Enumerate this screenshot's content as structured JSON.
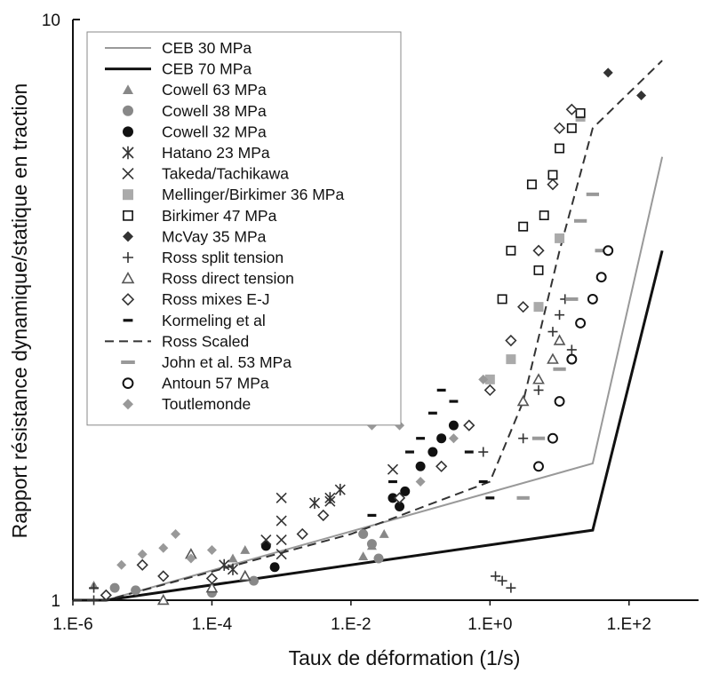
{
  "chart_data": {
    "type": "scatter",
    "title": "",
    "xlabel": "Taux de déformation (1/s)",
    "ylabel": "Rapport résistance dynamique/statique en traction",
    "x_scale": "log",
    "y_scale": "log",
    "xlim": [
      1e-06,
      1000
    ],
    "ylim": [
      1,
      10
    ],
    "x_ticks": [
      {
        "value": 1e-06,
        "label": "1.E-6"
      },
      {
        "value": 0.0001,
        "label": "1.E-4"
      },
      {
        "value": 0.01,
        "label": "1.E-2"
      },
      {
        "value": 1,
        "label": "1.E+0"
      },
      {
        "value": 100,
        "label": "1.E+2"
      }
    ],
    "y_ticks": [
      {
        "value": 1,
        "label": "1"
      },
      {
        "value": 10,
        "label": "10"
      }
    ],
    "grid": false,
    "legend_position": "top-left",
    "series": [
      {
        "name": "CEB 30 MPa",
        "kind": "line",
        "color": "#999999",
        "x": [
          1e-06,
          3e-06,
          30,
          300
        ],
        "y": [
          1.0,
          1.0,
          1.72,
          5.8
        ]
      },
      {
        "name": "CEB 70 MPa",
        "kind": "line",
        "color": "#111111",
        "x": [
          1e-06,
          3e-06,
          30,
          300
        ],
        "y": [
          1.0,
          1.0,
          1.32,
          4.0
        ]
      },
      {
        "name": "Cowell 63 MPa",
        "marker": "triangle-filled",
        "color": "#888888",
        "x": [
          2e-06,
          0.0002,
          0.0003,
          0.03,
          0.015,
          0.02
        ],
        "y": [
          1.06,
          1.18,
          1.22,
          1.3,
          1.19,
          1.24
        ]
      },
      {
        "name": "Cowell 38 MPa",
        "marker": "circle-filled",
        "color": "#888888",
        "x": [
          4e-06,
          8e-06,
          0.0004,
          0.0001,
          0.02,
          0.025,
          0.015
        ],
        "y": [
          1.05,
          1.04,
          1.08,
          1.03,
          1.25,
          1.18,
          1.3
        ]
      },
      {
        "name": "Cowell 32 MPa",
        "marker": "circle-filled",
        "color": "#111111",
        "x": [
          0.0006,
          0.0008,
          0.04,
          0.05,
          0.06,
          0.1,
          0.15,
          0.2,
          0.3
        ],
        "y": [
          1.24,
          1.14,
          1.5,
          1.45,
          1.54,
          1.7,
          1.8,
          1.9,
          2.0
        ]
      },
      {
        "name": "Hatano 23 MPa",
        "marker": "asterisk",
        "color": "#333333",
        "x": [
          0.0002,
          0.00015,
          0.003,
          0.005,
          0.007
        ],
        "y": [
          1.13,
          1.15,
          1.47,
          1.5,
          1.55
        ]
      },
      {
        "name": "Takeda/Tachikawa",
        "marker": "cross",
        "color": "#333333",
        "x": [
          0.0006,
          0.001,
          0.001,
          0.001,
          0.005,
          0.04,
          0.001
        ],
        "y": [
          1.27,
          1.27,
          1.37,
          1.5,
          1.48,
          1.68,
          1.2
        ]
      },
      {
        "name": "Mellinger/Birkimer 36 MPa",
        "marker": "square-filled",
        "color": "#aaaaaa",
        "x": [
          1,
          2,
          5,
          10,
          20
        ],
        "y": [
          2.4,
          2.6,
          3.2,
          4.2,
          6.8
        ]
      },
      {
        "name": "Birkimer 47 MPa",
        "marker": "square-open",
        "color": "#111111",
        "x": [
          1.5,
          2,
          3,
          4,
          5,
          6,
          8,
          10,
          15,
          20
        ],
        "y": [
          3.3,
          4.0,
          4.4,
          5.2,
          3.7,
          4.6,
          5.4,
          6.0,
          6.5,
          6.9
        ]
      },
      {
        "name": "McVay 35 MPa",
        "marker": "diamond-filled",
        "color": "#333333",
        "x": [
          50,
          150
        ],
        "y": [
          8.1,
          7.4
        ]
      },
      {
        "name": "Ross split tension",
        "marker": "plus",
        "color": "#333333",
        "x": [
          2e-06,
          2e-06,
          0.8,
          1.2,
          1.5,
          2,
          3,
          5,
          8,
          10,
          12,
          15
        ],
        "y": [
          1.05,
          1.0,
          1.8,
          1.1,
          1.08,
          1.05,
          1.9,
          2.3,
          2.9,
          3.1,
          3.3,
          2.7
        ]
      },
      {
        "name": "Ross direct tension",
        "marker": "triangle-open",
        "color": "#555555",
        "x": [
          5e-05,
          0.0003,
          0.0001,
          2e-05,
          3,
          5,
          8,
          10
        ],
        "y": [
          1.2,
          1.1,
          1.05,
          1.0,
          2.2,
          2.4,
          2.6,
          2.8
        ]
      },
      {
        "name": "Ross mixes E-J",
        "marker": "diamond-open",
        "color": "#333333",
        "x": [
          1e-05,
          2e-05,
          3e-06,
          0.0001,
          0.002,
          0.004,
          0.05,
          0.2,
          0.5,
          1,
          2,
          3,
          5,
          8,
          10,
          15
        ],
        "y": [
          1.15,
          1.1,
          1.02,
          1.09,
          1.3,
          1.4,
          1.5,
          1.7,
          2.0,
          2.3,
          2.8,
          3.2,
          4.0,
          5.2,
          6.5,
          7.0
        ]
      },
      {
        "name": "Kormeling et al",
        "marker": "dash-black",
        "color": "#111111",
        "x": [
          0.02,
          0.04,
          0.07,
          0.1,
          0.15,
          0.2,
          0.3,
          0.5,
          0.8,
          1.0
        ],
        "y": [
          1.4,
          1.6,
          1.8,
          1.9,
          2.1,
          2.3,
          2.2,
          1.8,
          1.6,
          1.5
        ]
      },
      {
        "name": "Ross Scaled",
        "kind": "line",
        "dash": true,
        "color": "#333333",
        "x": [
          1e-06,
          3e-06,
          0.01,
          1,
          3,
          10,
          30,
          300
        ],
        "y": [
          1.0,
          1.0,
          1.3,
          1.6,
          2.2,
          4.0,
          6.5,
          8.5
        ]
      },
      {
        "name": "John et al. 53 MPa",
        "marker": "dash-gray",
        "color": "#999999",
        "x": [
          3,
          5,
          10,
          15,
          20,
          30,
          40
        ],
        "y": [
          1.5,
          1.9,
          2.5,
          3.3,
          4.5,
          5.0,
          4.0
        ]
      },
      {
        "name": "Antoun 57 MPa",
        "marker": "circle-open",
        "color": "#111111",
        "x": [
          5,
          8,
          10,
          15,
          20,
          30,
          40,
          50
        ],
        "y": [
          1.7,
          1.9,
          2.2,
          2.6,
          3.0,
          3.3,
          3.6,
          4.0
        ]
      },
      {
        "name": "Toutlemonde",
        "marker": "diamond-filled",
        "color": "#999999",
        "x": [
          5e-06,
          1e-05,
          2e-05,
          3e-05,
          5e-05,
          0.0001,
          0.02,
          0.05,
          0.1,
          0.3,
          0.8
        ],
        "y": [
          1.15,
          1.2,
          1.23,
          1.3,
          1.18,
          1.22,
          2.0,
          2.0,
          1.6,
          1.9,
          2.4
        ]
      }
    ]
  }
}
